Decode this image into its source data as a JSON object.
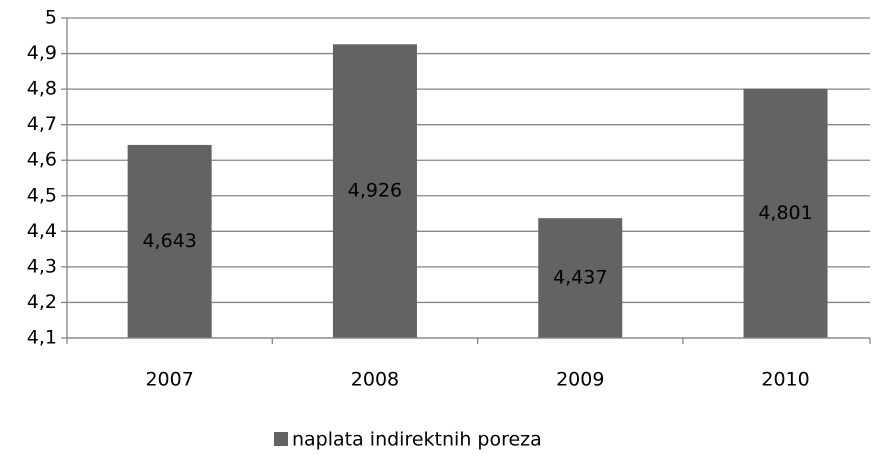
{
  "chart_data": {
    "type": "bar",
    "categories": [
      "2007",
      "2008",
      "2009",
      "2010"
    ],
    "series": [
      {
        "name": "naplata indirektnih poreza",
        "color": "#636363",
        "values": [
          4.643,
          4.926,
          4.437,
          4.801
        ],
        "value_labels": [
          "4,643",
          "4,926",
          "4,437",
          "4,801"
        ]
      }
    ],
    "ylim": [
      4.1,
      5
    ],
    "yticks": [
      {
        "value": 4.1,
        "label": "4,1"
      },
      {
        "value": 4.2,
        "label": "4,2"
      },
      {
        "value": 4.3,
        "label": "4,3"
      },
      {
        "value": 4.4,
        "label": "4,4"
      },
      {
        "value": 4.5,
        "label": "4,5"
      },
      {
        "value": 4.6,
        "label": "4,6"
      },
      {
        "value": 4.7,
        "label": "4,7"
      },
      {
        "value": 4.8,
        "label": "4,8"
      },
      {
        "value": 4.9,
        "label": "4,9"
      },
      5
    ],
    "grid": true,
    "legend": "bottom"
  }
}
